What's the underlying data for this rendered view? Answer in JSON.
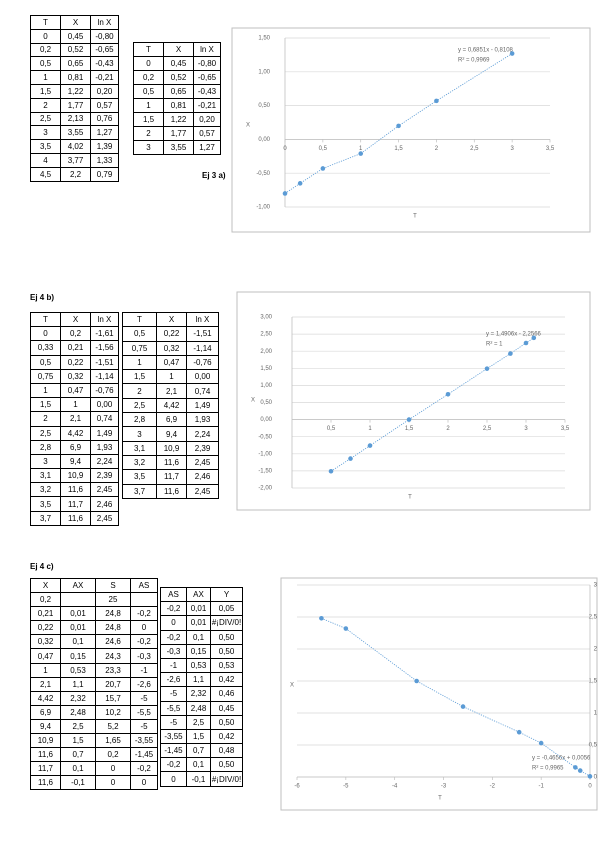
{
  "labels": [
    "Ej 3 a)",
    "Ej 4 b)",
    "Ej 4 c)"
  ],
  "tables": [
    {
      "headers": [
        "T",
        "X",
        "ln X"
      ],
      "rows": [
        [
          "0",
          "0,45",
          "-0,80"
        ],
        [
          "0,2",
          "0,52",
          "-0,65"
        ],
        [
          "0,5",
          "0,65",
          "-0,43"
        ],
        [
          "1",
          "0,81",
          "-0,21"
        ],
        [
          "1,5",
          "1,22",
          "0,20"
        ],
        [
          "2",
          "1,77",
          "0,57"
        ],
        [
          "2,5",
          "2,13",
          "0,76"
        ],
        [
          "3",
          "3,55",
          "1,27"
        ],
        [
          "3,5",
          "4,02",
          "1,39"
        ],
        [
          "4",
          "3,77",
          "1,33"
        ],
        [
          "4,5",
          "2,2",
          "0,79"
        ]
      ]
    },
    {
      "headers": [
        "T",
        "X",
        "ln X"
      ],
      "rows": [
        [
          "0",
          "0,45",
          "-0,80"
        ],
        [
          "0,2",
          "0,52",
          "-0,65"
        ],
        [
          "0,5",
          "0,65",
          "-0,43"
        ],
        [
          "1",
          "0,81",
          "-0,21"
        ],
        [
          "1,5",
          "1,22",
          "0,20"
        ],
        [
          "2",
          "1,77",
          "0,57"
        ],
        [
          "3",
          "3,55",
          "1,27"
        ]
      ]
    },
    {
      "headers": [
        "T",
        "X",
        "ln X"
      ],
      "rows": [
        [
          "0",
          "0,2",
          "-1,61"
        ],
        [
          "0,33",
          "0,21",
          "-1,56"
        ],
        [
          "0,5",
          "0,22",
          "-1,51"
        ],
        [
          "0,75",
          "0,32",
          "-1,14"
        ],
        [
          "1",
          "0,47",
          "-0,76"
        ],
        [
          "1,5",
          "1",
          "0,00"
        ],
        [
          "2",
          "2,1",
          "0,74"
        ],
        [
          "2,5",
          "4,42",
          "1,49"
        ],
        [
          "2,8",
          "6,9",
          "1,93"
        ],
        [
          "3",
          "9,4",
          "2,24"
        ],
        [
          "3,1",
          "10,9",
          "2,39"
        ],
        [
          "3,2",
          "11,6",
          "2,45"
        ],
        [
          "3,5",
          "11,7",
          "2,46"
        ],
        [
          "3,7",
          "11,6",
          "2,45"
        ]
      ]
    },
    {
      "headers": [
        "T",
        "X",
        "ln X"
      ],
      "rows": [
        [
          "0,5",
          "0,22",
          "-1,51"
        ],
        [
          "0,75",
          "0,32",
          "-1,14"
        ],
        [
          "1",
          "0,47",
          "-0,76"
        ],
        [
          "1,5",
          "1",
          "0,00"
        ],
        [
          "2",
          "2,1",
          "0,74"
        ],
        [
          "2,5",
          "4,42",
          "1,49"
        ],
        [
          "2,8",
          "6,9",
          "1,93"
        ],
        [
          "3",
          "9,4",
          "2,24"
        ],
        [
          "3,1",
          "10,9",
          "2,39"
        ],
        [
          "3,2",
          "11,6",
          "2,45"
        ],
        [
          "3,5",
          "11,7",
          "2,46"
        ],
        [
          "3,7",
          "11,6",
          "2,45"
        ]
      ]
    },
    {
      "headers": [
        "X",
        "AX",
        "S",
        "AS"
      ],
      "rows": [
        [
          "0,2",
          null,
          "25",
          null
        ],
        [
          "0,21",
          "0,01",
          "24,8",
          "-0,2"
        ],
        [
          "0,22",
          "0,01",
          "24,8",
          "0"
        ],
        [
          "0,32",
          "0,1",
          "24,6",
          "-0,2"
        ],
        [
          "0,47",
          "0,15",
          "24,3",
          "-0,3"
        ],
        [
          "1",
          "0,53",
          "23,3",
          "-1"
        ],
        [
          "2,1",
          "1,1",
          "20,7",
          "-2,6"
        ],
        [
          "4,42",
          "2,32",
          "15,7",
          "-5"
        ],
        [
          "6,9",
          "2,48",
          "10,2",
          "-5,5"
        ],
        [
          "9,4",
          "2,5",
          "5,2",
          "-5"
        ],
        [
          "10,9",
          "1,5",
          "1,65",
          "-3,55"
        ],
        [
          "11,6",
          "0,7",
          "0,2",
          "-1,45"
        ],
        [
          "11,7",
          "0,1",
          "0",
          "-0,2"
        ],
        [
          "11,6",
          "-0,1",
          "0",
          "0"
        ]
      ]
    },
    {
      "headers": [
        "AS",
        "AX",
        "Y"
      ],
      "rows": [
        [
          "-0,2",
          "0,01",
          "0,05"
        ],
        [
          "0",
          "0,01",
          "#¡DIV/0!"
        ],
        [
          "-0,2",
          "0,1",
          "0,50"
        ],
        [
          "-0,3",
          "0,15",
          "0,50"
        ],
        [
          "-1",
          "0,53",
          "0,53"
        ],
        [
          "-2,6",
          "1,1",
          "0,42"
        ],
        [
          "-5",
          "2,32",
          "0,46"
        ],
        [
          "-5,5",
          "2,48",
          "0,45"
        ],
        [
          "-5",
          "2,5",
          "0,50"
        ],
        [
          "-3,55",
          "1,5",
          "0,42"
        ],
        [
          "-1,45",
          "0,7",
          "0,48"
        ],
        [
          "-0,2",
          "0,1",
          "0,50"
        ],
        [
          "0",
          "-0,1",
          "#¡DIV/0!"
        ]
      ]
    }
  ],
  "charts": [
    {
      "type": "scatter",
      "x_label": "T",
      "y_label": "X",
      "annotation": [
        "y = 0,6851x - 0,8108",
        "R² = 0,9969"
      ],
      "color": "#5b9bd5",
      "x": [
        0,
        0.2,
        0.5,
        1,
        1.5,
        2,
        3
      ],
      "y": [
        -0.8,
        -0.65,
        -0.43,
        -0.21,
        0.2,
        0.57,
        1.27
      ],
      "xlim": [
        0,
        3.5
      ],
      "ylim": [
        -1,
        1.5
      ],
      "xticks": [
        0,
        {
          "value": 0.5,
          "label": "0,5"
        },
        1,
        {
          "value": 1.5,
          "label": "1,5"
        },
        2,
        {
          "value": 2.5,
          "label": "2,5"
        },
        3,
        {
          "value": 3.5,
          "label": "3,5"
        }
      ],
      "yticks": [
        {
          "value": -1,
          "label": "-1,00"
        },
        {
          "value": -0.5,
          "label": "-0,50"
        },
        {
          "value": 0,
          "label": "0,00"
        },
        {
          "value": 0.5,
          "label": "0,50"
        },
        {
          "value": 1,
          "label": "1,00"
        },
        {
          "value": 1.5,
          "label": "1,50"
        }
      ]
    },
    {
      "type": "scatter",
      "x_label": "T",
      "y_label": "X",
      "annotation": [
        "y = 1,4906x - 2,2566",
        "R² = 1"
      ],
      "color": "#5b9bd5",
      "x": [
        0.5,
        0.75,
        1,
        1.5,
        2,
        2.5,
        2.8,
        3,
        3.1
      ],
      "y": [
        -1.51,
        -1.14,
        -0.76,
        0,
        0.74,
        1.49,
        1.93,
        2.24,
        2.39
      ],
      "xlim": [
        0,
        3.5
      ],
      "ylim": [
        -2,
        3
      ],
      "xticks": [
        {
          "value": 0.5,
          "label": "0,5"
        },
        1,
        {
          "value": 1.5,
          "label": "1,5"
        },
        2,
        {
          "value": 2.5,
          "label": "2,5"
        },
        3,
        {
          "value": 3.5,
          "label": "3,5"
        }
      ],
      "yticks": [
        {
          "value": -2,
          "label": "-2,00"
        },
        {
          "value": -1.5,
          "label": "-1,50"
        },
        {
          "value": -1,
          "label": "-1,00"
        },
        {
          "value": -0.5,
          "label": "-0,50"
        },
        {
          "value": 0,
          "label": "0,00"
        },
        {
          "value": 0.5,
          "label": "0,50"
        },
        {
          "value": 1,
          "label": "1,00"
        },
        {
          "value": 1.5,
          "label": "1,50"
        },
        {
          "value": 2,
          "label": "2,00"
        },
        {
          "value": 2.5,
          "label": "2,50"
        },
        {
          "value": 3,
          "label": "3,00"
        }
      ]
    },
    {
      "type": "scatter",
      "x_label": "T",
      "y_label": "X",
      "annotation": [
        "y = -0,4656x + 0,0056",
        "R² = 0,9965"
      ],
      "color": "#5b9bd5",
      "x": [
        -5.5,
        -5,
        -3.55,
        -2.6,
        -1.45,
        -1,
        -0.3,
        -0.2,
        0
      ],
      "y": [
        2.48,
        2.32,
        1.5,
        1.1,
        0.7,
        0.53,
        0.15,
        0.1,
        0.01
      ],
      "xlim": [
        -6,
        0
      ],
      "ylim": [
        0,
        3
      ],
      "xticks": [
        -6,
        -5,
        -4,
        -3,
        -2,
        -1,
        0
      ],
      "yticks": [
        0,
        {
          "value": 0.5,
          "label": "0,5"
        },
        1,
        {
          "value": 1.5,
          "label": "1,5"
        },
        2,
        {
          "value": 2.5,
          "label": "2,5"
        },
        3
      ]
    }
  ]
}
